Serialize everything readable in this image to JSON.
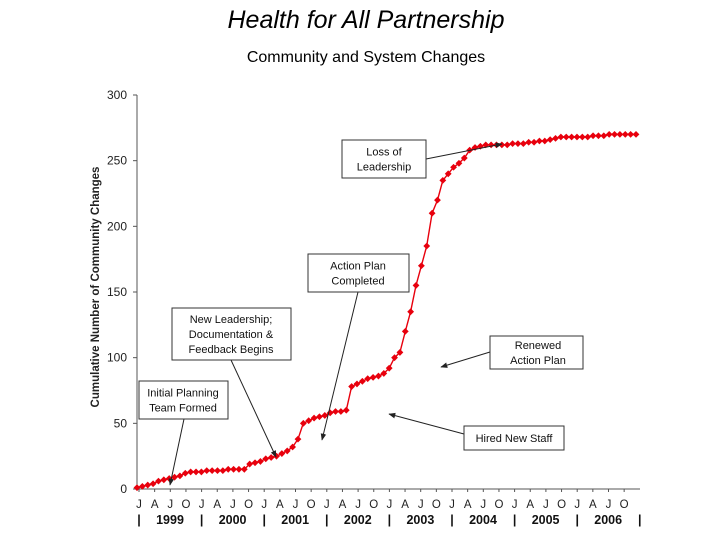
{
  "chart_data": {
    "type": "line",
    "title": "Health for All Partnership",
    "subtitle": "Community and System Changes",
    "ylabel": "Cumulative Number of Community Changes",
    "xlabel": "",
    "ylim": [
      0,
      300
    ],
    "yticks": [
      0,
      50,
      100,
      150,
      200,
      250,
      300
    ],
    "month_tick_labels": [
      "J",
      "A",
      "J",
      "O",
      "J",
      "A",
      "J",
      "O",
      "J",
      "A",
      "J",
      "O",
      "J",
      "A",
      "J",
      "O",
      "J",
      "A",
      "J",
      "O",
      "J",
      "A",
      "J",
      "O",
      "J",
      "A",
      "J",
      "O",
      "J",
      "A",
      "J",
      "O"
    ],
    "year_labels": [
      "1999",
      "2000",
      "2001",
      "2002",
      "2003",
      "2004",
      "2005",
      "2006"
    ],
    "year_separator": "|",
    "grid": false,
    "series": [
      {
        "color": "#e8000d",
        "marker": "diamond",
        "x": [
          0,
          1,
          2,
          3,
          4,
          5,
          6,
          7,
          8,
          9,
          10,
          11,
          12,
          13,
          14,
          15,
          16,
          17,
          18,
          19,
          20,
          21,
          22,
          23,
          24,
          25,
          26,
          27,
          28,
          29,
          30,
          31,
          32,
          33,
          34,
          35,
          36,
          37,
          38,
          39,
          40,
          41,
          42,
          43,
          44,
          45,
          46,
          47,
          48,
          49,
          50,
          51,
          52,
          53,
          54,
          55,
          56,
          57,
          58,
          59,
          60,
          61,
          62,
          63,
          64,
          65,
          66,
          67,
          68,
          69,
          70,
          71,
          72,
          73,
          74,
          75,
          76,
          77,
          78,
          79,
          80,
          81,
          82,
          83,
          84,
          85,
          86,
          87,
          88,
          89,
          90,
          91,
          92,
          93
        ],
        "values": [
          1,
          2,
          3,
          4,
          6,
          7,
          8,
          9,
          10,
          12,
          13,
          13,
          13,
          14,
          14,
          14,
          14,
          15,
          15,
          15,
          15,
          19,
          20,
          21,
          23,
          24,
          25,
          27,
          29,
          32,
          38,
          50,
          52,
          54,
          55,
          56,
          58,
          59,
          59,
          60,
          78,
          80,
          82,
          84,
          85,
          86,
          88,
          92,
          100,
          104,
          120,
          135,
          155,
          170,
          185,
          210,
          220,
          235,
          240,
          245,
          248,
          252,
          258,
          260,
          261,
          262,
          262,
          262,
          262,
          262,
          263,
          263,
          263,
          264,
          264,
          265,
          265,
          266,
          267,
          268,
          268,
          268,
          268,
          268,
          268,
          269,
          269,
          269,
          270,
          270,
          270,
          270,
          270,
          270
        ]
      }
    ],
    "annotations": [
      {
        "lines": [
          "Initial Planning",
          "Team Formed"
        ]
      },
      {
        "lines": [
          "New Leadership;",
          "Documentation &",
          "Feedback Begins"
        ]
      },
      {
        "lines": [
          "Action Plan",
          "Completed"
        ]
      },
      {
        "lines": [
          "Loss of",
          "Leadership"
        ]
      },
      {
        "lines": [
          "Renewed",
          "Action Plan"
        ]
      },
      {
        "lines": [
          "Hired New Staff"
        ]
      }
    ]
  }
}
